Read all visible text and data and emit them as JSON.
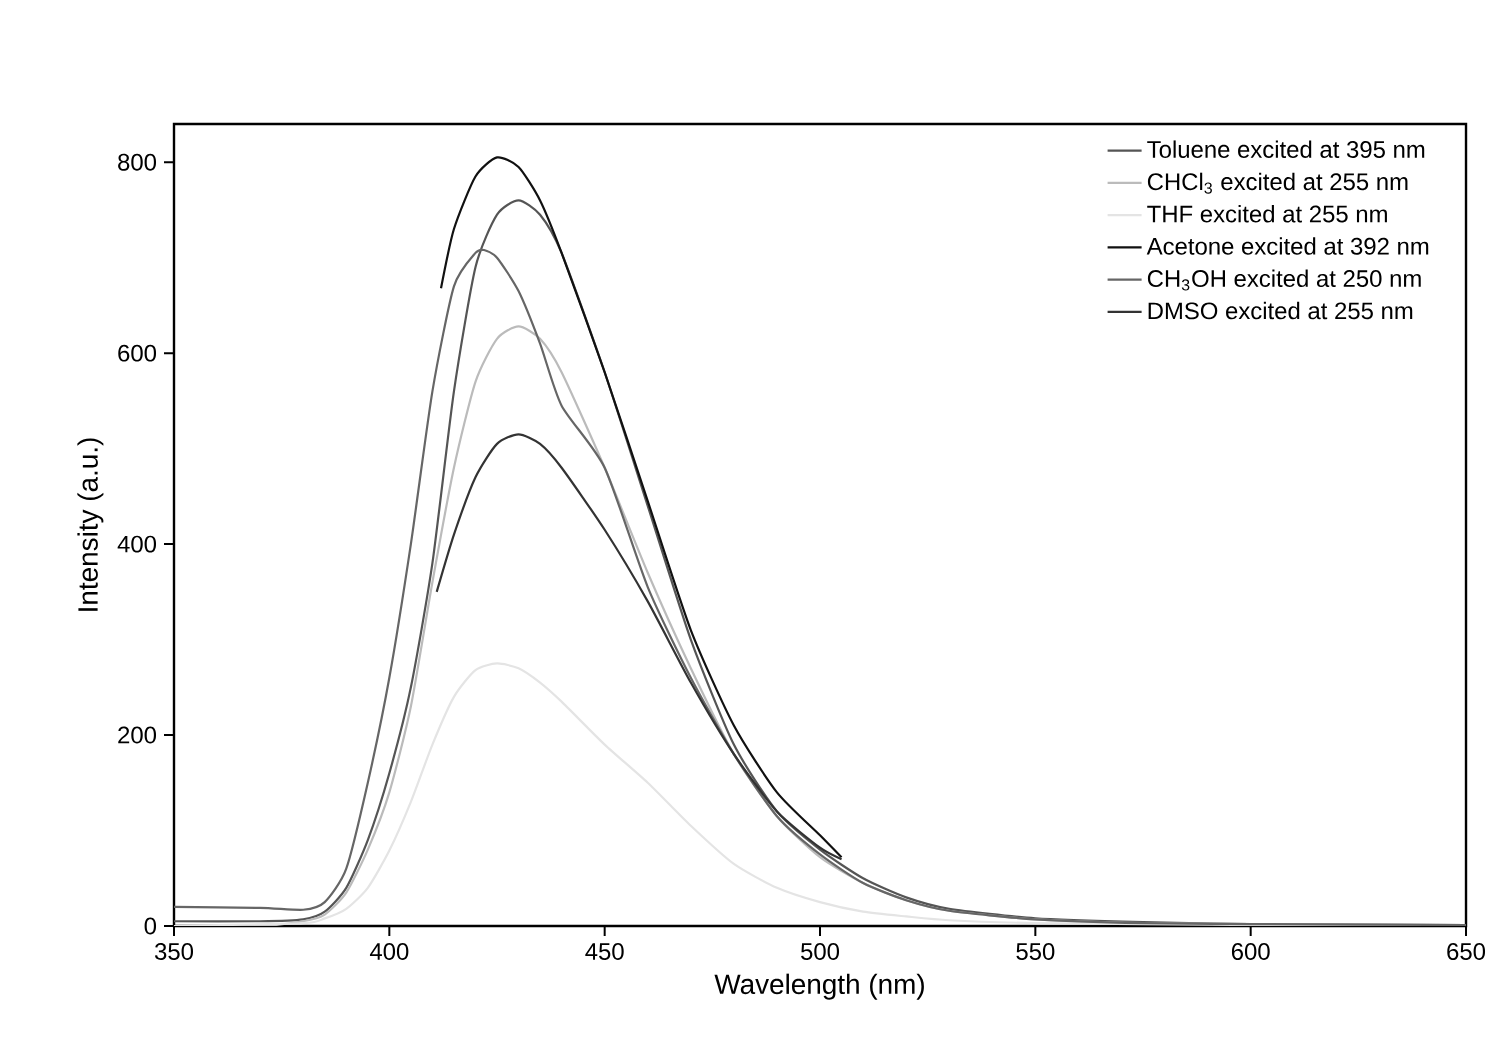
{
  "chart_data": {
    "type": "line",
    "xlabel": "Wavelength (nm)",
    "ylabel": "Intensity (a.u.)",
    "xlim": [
      350,
      650
    ],
    "ylim": [
      0,
      840
    ],
    "xticks": [
      350,
      400,
      450,
      500,
      550,
      600,
      650
    ],
    "yticks": [
      0,
      200,
      400,
      600,
      800
    ],
    "grid": false,
    "legend": "top right",
    "series": [
      {
        "name": "Toluene excited at 395 nm",
        "color": "#555555",
        "x": [
          350,
          370,
          380,
          385,
          390,
          395,
          400,
          405,
          410,
          415,
          420,
          425,
          430,
          435,
          440,
          450,
          460,
          470,
          480,
          490,
          500,
          510,
          520,
          530,
          550,
          575,
          600,
          650
        ],
        "values": [
          5,
          5,
          7,
          15,
          40,
          90,
          160,
          250,
          380,
          560,
          690,
          745,
          760,
          745,
          705,
          580,
          440,
          300,
          190,
          120,
          80,
          50,
          30,
          18,
          8,
          4,
          2,
          1
        ]
      },
      {
        "name": "CHCl$_{3}$ excited at 255 nm",
        "color": "#bbbbbb",
        "x": [
          350,
          370,
          380,
          385,
          390,
          395,
          400,
          405,
          410,
          415,
          420,
          425,
          430,
          435,
          440,
          450,
          460,
          470,
          480,
          490,
          500,
          510,
          520,
          530,
          550,
          575,
          600,
          650
        ],
        "values": [
          0,
          0,
          5,
          12,
          35,
          80,
          140,
          230,
          360,
          480,
          570,
          615,
          628,
          615,
          580,
          480,
          370,
          270,
          180,
          115,
          72,
          45,
          27,
          16,
          7,
          3,
          2,
          1
        ]
      },
      {
        "name": "THF excited at 255 nm",
        "color": "#e4e4e4",
        "x": [
          350,
          380,
          385,
          390,
          395,
          400,
          405,
          410,
          415,
          420,
          425,
          430,
          435,
          440,
          450,
          460,
          470,
          480,
          490,
          500,
          510,
          520,
          530,
          550,
          575,
          600,
          650
        ],
        "values": [
          0,
          3,
          8,
          18,
          40,
          79,
          130,
          190,
          240,
          268,
          275,
          270,
          255,
          235,
          190,
          150,
          105,
          65,
          40,
          25,
          15,
          10,
          6,
          3,
          2,
          1,
          0
        ]
      },
      {
        "name": "Acetone excited at 392 nm",
        "color": "#111111",
        "x": [
          412,
          415,
          420,
          425,
          430,
          435,
          440,
          450,
          460,
          470,
          480,
          490,
          500,
          505
        ],
        "values": [
          668,
          730,
          785,
          805,
          795,
          760,
          705,
          580,
          445,
          310,
          210,
          140,
          95,
          72
        ]
      },
      {
        "name": "CH$_{3}$OH excited at 250 nm",
        "color": "#666666",
        "x": [
          350,
          370,
          380,
          385,
          390,
          395,
          400,
          405,
          410,
          415,
          420,
          422,
          425,
          430,
          435,
          440,
          450,
          460,
          470,
          480,
          490,
          500,
          510,
          520,
          530,
          550,
          575,
          600,
          650
        ],
        "values": [
          20,
          19,
          17,
          25,
          60,
          150,
          260,
          400,
          560,
          670,
          705,
          708,
          700,
          665,
          610,
          545,
          480,
          355,
          260,
          180,
          115,
          75,
          45,
          27,
          16,
          7,
          3,
          2,
          1
        ]
      },
      {
        "name": "DMSO excited at 255 nm",
        "color": "#333333",
        "x": [
          411,
          415,
          420,
          425,
          430,
          435,
          440,
          450,
          460,
          470,
          480,
          490,
          500,
          505
        ],
        "values": [
          350,
          410,
          470,
          505,
          515,
          505,
          480,
          415,
          340,
          255,
          180,
          120,
          82,
          70
        ]
      }
    ]
  }
}
